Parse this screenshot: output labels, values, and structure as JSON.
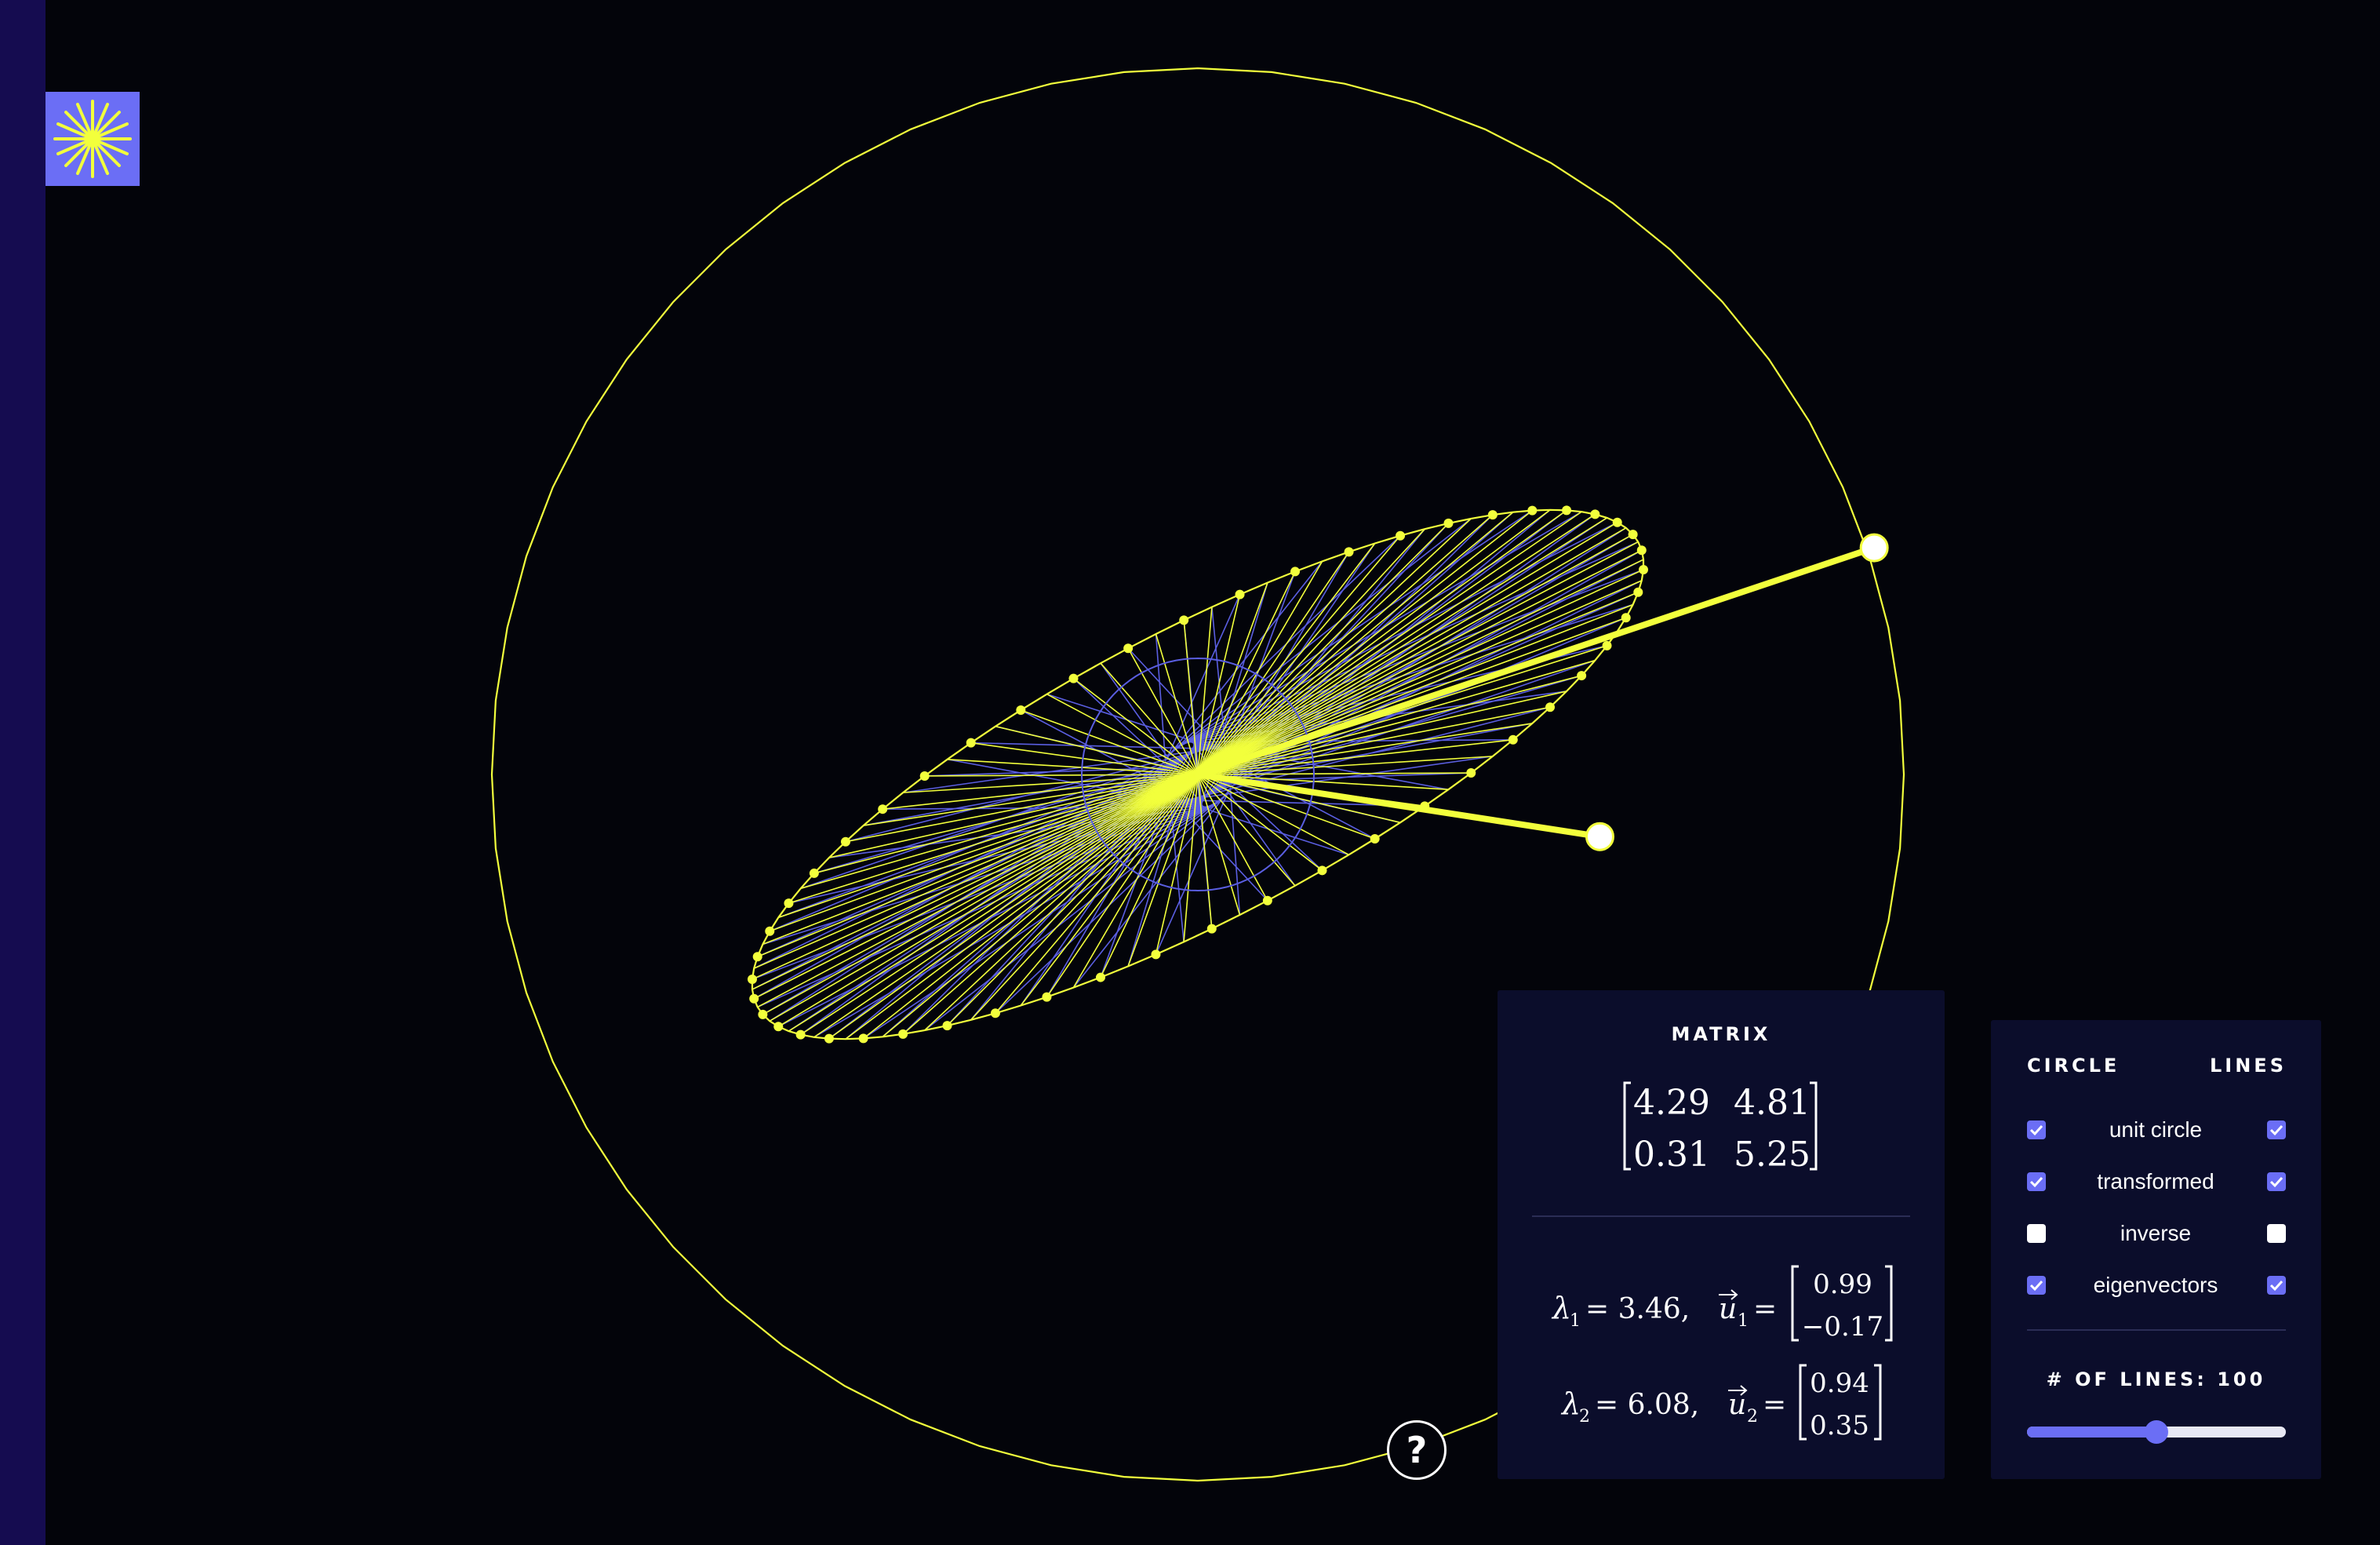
{
  "matrix": {
    "title": "MATRIX",
    "values": [
      [
        "4.29",
        "4.81"
      ],
      [
        "0.31",
        "5.25"
      ]
    ]
  },
  "eigen": [
    {
      "lambda_label": "λ",
      "index": "1",
      "value": "= 3.46,",
      "vector_label": "u",
      "vector": [
        "0.99",
        "−0.17"
      ]
    },
    {
      "lambda_label": "λ",
      "index": "2",
      "value": "= 6.08,",
      "vector_label": "u",
      "vector": [
        "0.94",
        "0.35"
      ]
    }
  ],
  "options": {
    "circle_heading": "CIRCLE",
    "lines_heading": "LINES",
    "rows": [
      {
        "label": "unit circle",
        "circle": true,
        "lines": true
      },
      {
        "label": "transformed",
        "circle": true,
        "lines": true
      },
      {
        "label": "inverse",
        "circle": false,
        "lines": false
      },
      {
        "label": "eigenvectors",
        "circle": true,
        "lines": true
      }
    ]
  },
  "line_count": {
    "label": "# OF LINES: 100",
    "value": 100,
    "min": 0,
    "max": 200
  },
  "help": {
    "label": "?"
  },
  "colors": {
    "accent": "#6b6ef5",
    "highlight": "#f2ff3c",
    "sidebar": "#150c50",
    "background": "#03040a"
  },
  "icons": {
    "logo": "starburst-icon"
  }
}
